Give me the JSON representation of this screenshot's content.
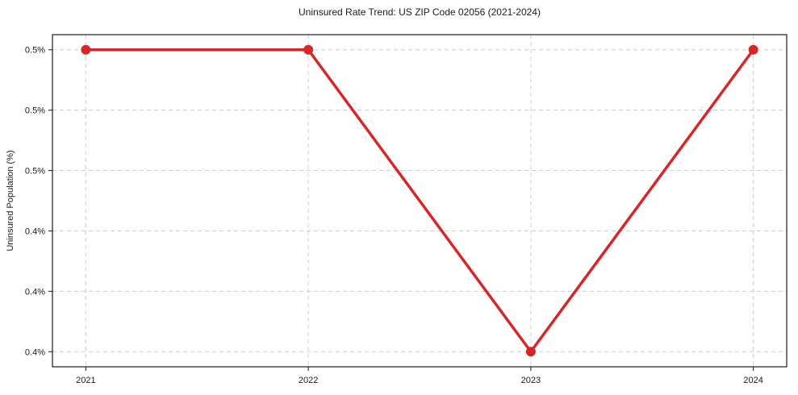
{
  "page": {
    "background": "#ffffff"
  },
  "chart_data": {
    "type": "line",
    "title": "Uninsured Rate Trend: US ZIP Code 02056 (2021-2024)",
    "xlabel": "",
    "ylabel": "Uninsured Population (%)",
    "categories": [
      "2021",
      "2022",
      "2023",
      "2024"
    ],
    "x": [
      2021,
      2022,
      2023,
      2024
    ],
    "values": [
      0.5,
      0.5,
      0.4,
      0.5
    ],
    "y_ticks": [
      {
        "value": 0.5,
        "label": "0.5%"
      },
      {
        "value": 0.48,
        "label": "0.5%"
      },
      {
        "value": 0.46,
        "label": "0.5%"
      },
      {
        "value": 0.44,
        "label": "0.4%"
      },
      {
        "value": 0.42,
        "label": "0.4%"
      },
      {
        "value": 0.4,
        "label": "0.4%"
      }
    ],
    "xlim": [
      2020.85,
      2024.15
    ],
    "ylim": [
      0.395,
      0.505
    ],
    "grid": true,
    "grid_style": "dashed",
    "legend": false,
    "colors": {
      "line": "#d62728",
      "marker": "#d62728",
      "gridline": "#cccccc",
      "frame": "#1a1a1a",
      "text": "#1a1a1a"
    },
    "marker": "circle"
  }
}
